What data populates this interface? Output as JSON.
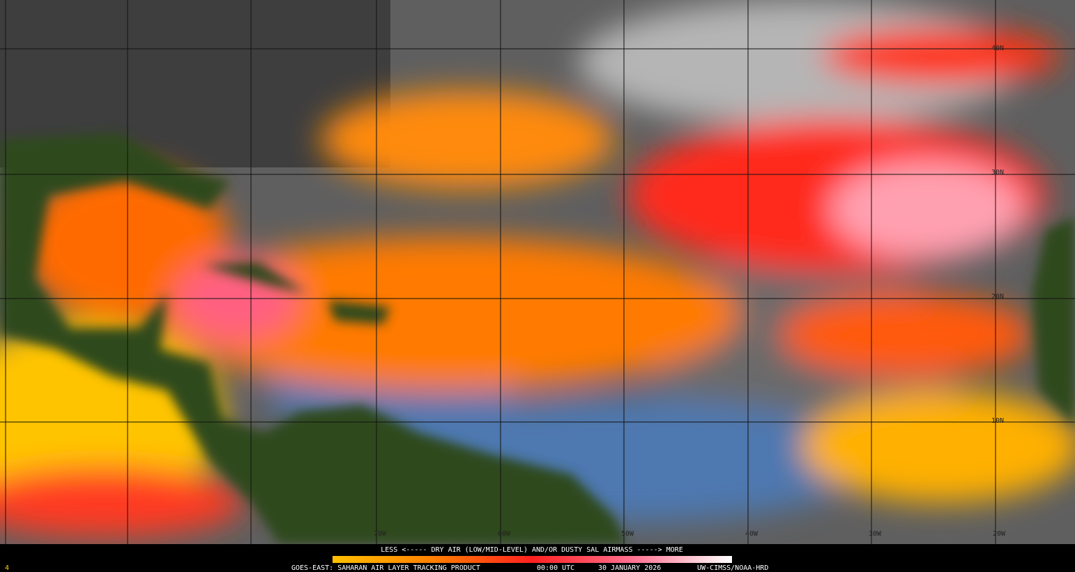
{
  "map": {
    "caption": "LESS <----- DRY AIR (LOW/MID-LEVEL) AND/OR DUSTY SAL AIRMASS -----> MORE",
    "product": "GOES-EAST: SAHARAN AIR LAYER TRACKING PRODUCT",
    "time": "00:00 UTC",
    "date": "30 JANUARY 2026",
    "credit": "UW-CIMSS/NOAA-HRD",
    "frame": "4",
    "lat_labels": [
      "40N",
      "30N",
      "20N",
      "10N"
    ],
    "lon_labels": [
      "70W",
      "60W",
      "50W",
      "40W",
      "30W",
      "20W"
    ]
  }
}
